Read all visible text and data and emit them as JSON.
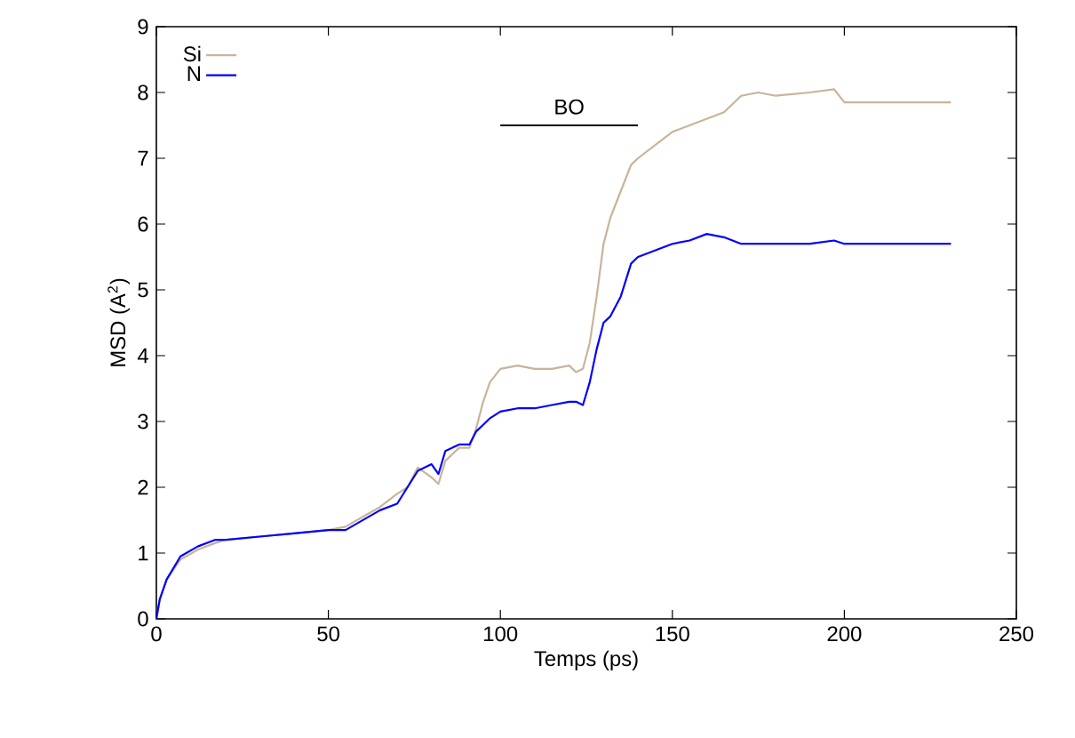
{
  "chart_data": {
    "type": "line",
    "xlabel": "Temps (ps)",
    "ylabel": "MSD (A$^{2}$)",
    "xlim": [
      0,
      250
    ],
    "ylim": [
      0,
      9
    ],
    "xticks": [
      0,
      50,
      100,
      150,
      200,
      250
    ],
    "yticks": [
      0,
      1,
      2,
      3,
      4,
      5,
      6,
      7,
      8,
      9
    ],
    "legend": "top left",
    "grid": false,
    "x": [
      0,
      1,
      3,
      7,
      12,
      17,
      20,
      30,
      40,
      50,
      55,
      60,
      65,
      70,
      73,
      76,
      80,
      82,
      84,
      88,
      91,
      93,
      95,
      97,
      100,
      105,
      110,
      115,
      120,
      122,
      124,
      126,
      128,
      130,
      132,
      135,
      138,
      140,
      145,
      150,
      155,
      160,
      165,
      170,
      175,
      180,
      190,
      197,
      200,
      210,
      220,
      231
    ],
    "series": [
      {
        "name": "Si",
        "color": "#c8b49a",
        "values": [
          0,
          0.3,
          0.6,
          0.9,
          1.05,
          1.15,
          1.2,
          1.25,
          1.3,
          1.35,
          1.4,
          1.55,
          1.7,
          1.9,
          2.0,
          2.3,
          2.15,
          2.05,
          2.4,
          2.6,
          2.6,
          2.9,
          3.3,
          3.6,
          3.8,
          3.85,
          3.8,
          3.8,
          3.85,
          3.75,
          3.8,
          4.2,
          4.9,
          5.7,
          6.1,
          6.5,
          6.9,
          7.0,
          7.2,
          7.4,
          7.5,
          7.6,
          7.7,
          7.95,
          8.0,
          7.95,
          8.0,
          8.05,
          7.85,
          7.85,
          7.85,
          7.85
        ]
      },
      {
        "name": "N",
        "color": "#0000ff",
        "values": [
          0,
          0.3,
          0.6,
          0.95,
          1.1,
          1.2,
          1.2,
          1.25,
          1.3,
          1.35,
          1.35,
          1.5,
          1.65,
          1.75,
          2.0,
          2.25,
          2.35,
          2.2,
          2.55,
          2.65,
          2.65,
          2.85,
          2.95,
          3.05,
          3.15,
          3.2,
          3.2,
          3.25,
          3.3,
          3.3,
          3.25,
          3.6,
          4.1,
          4.5,
          4.6,
          4.9,
          5.4,
          5.5,
          5.6,
          5.7,
          5.75,
          5.85,
          5.8,
          5.7,
          5.7,
          5.7,
          5.7,
          5.75,
          5.7,
          5.7,
          5.7,
          5.7
        ]
      },
      {
        "name": "BO",
        "color": "#000000",
        "x": [
          100,
          140
        ],
        "values": [
          7.5,
          7.5
        ]
      }
    ]
  }
}
